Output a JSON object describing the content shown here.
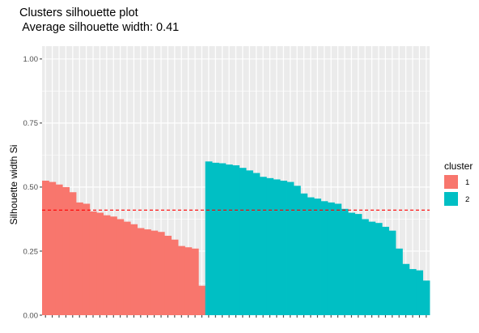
{
  "chart_data": {
    "type": "bar",
    "title": "Clusters silhouette plot",
    "subtitle": " Average silhouette width: 0.41",
    "xlabel": "",
    "ylabel": "Silhouette width Si",
    "ylim": [
      0,
      1.05
    ],
    "y_ticks": [
      "0.00",
      "0.25",
      "0.50",
      "0.75",
      "1.00"
    ],
    "grid": true,
    "legend": {
      "title": "cluster",
      "placement": "right"
    },
    "average_line": {
      "value": 0.41,
      "color": "#FF0000",
      "style": "dashed"
    },
    "series": [
      {
        "name": "1",
        "color": "#F8766D",
        "values": [
          0.525,
          0.52,
          0.51,
          0.5,
          0.48,
          0.44,
          0.435,
          0.405,
          0.4,
          0.39,
          0.385,
          0.375,
          0.365,
          0.355,
          0.34,
          0.335,
          0.33,
          0.325,
          0.31,
          0.295,
          0.27,
          0.265,
          0.26,
          0.115
        ]
      },
      {
        "name": "2",
        "color": "#00BFC4",
        "values": [
          0.6,
          0.595,
          0.593,
          0.588,
          0.585,
          0.575,
          0.565,
          0.555,
          0.54,
          0.535,
          0.53,
          0.525,
          0.52,
          0.505,
          0.475,
          0.46,
          0.455,
          0.445,
          0.44,
          0.435,
          0.415,
          0.4,
          0.395,
          0.375,
          0.365,
          0.36,
          0.345,
          0.33,
          0.26,
          0.2,
          0.18,
          0.175,
          0.135
        ]
      }
    ]
  }
}
